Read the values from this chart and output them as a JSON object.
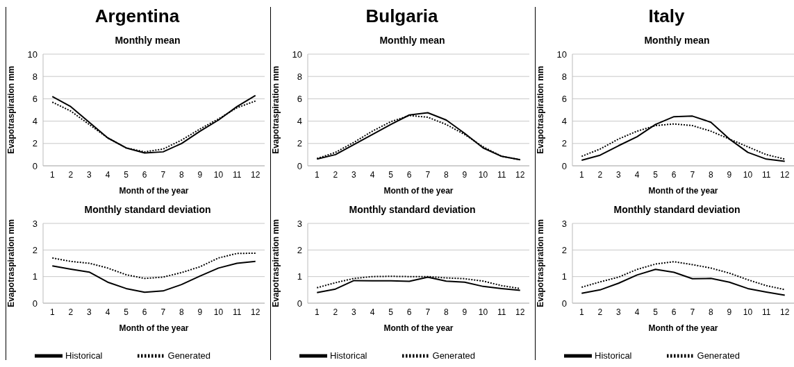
{
  "chart_data": [
    {
      "type": "line",
      "title": "Argentina",
      "subtitle": "Monthly mean",
      "xlabel": "Month of the year",
      "ylabel": "Evapotraspiration mm",
      "x": [
        1,
        2,
        3,
        4,
        5,
        6,
        7,
        8,
        9,
        10,
        11,
        12
      ],
      "xlim": [
        0.5,
        12.5
      ],
      "xticks": [
        1,
        2,
        3,
        4,
        5,
        6,
        7,
        8,
        9,
        10,
        11,
        12
      ],
      "ylim": [
        0,
        10
      ],
      "yticks": [
        0,
        2,
        4,
        6,
        8,
        10
      ],
      "grid": "y",
      "legend": false,
      "series": [
        {
          "color": "#000000",
          "line_style": "solid",
          "values": [
            6.2,
            5.3,
            3.9,
            2.5,
            1.6,
            1.15,
            1.25,
            2.0,
            3.1,
            4.1,
            5.3,
            6.3
          ]
        },
        {
          "color": "#000000",
          "line_style": "dotted",
          "values": [
            5.7,
            4.9,
            3.7,
            2.5,
            1.6,
            1.25,
            1.5,
            2.3,
            3.3,
            4.2,
            5.2,
            5.8
          ]
        }
      ]
    },
    {
      "type": "line",
      "title": "Monthly standard deviation",
      "xlabel": "Month of the year",
      "ylabel": "Evapotraspiration mm",
      "x": [
        1,
        2,
        3,
        4,
        5,
        6,
        7,
        8,
        9,
        10,
        11,
        12
      ],
      "xlim": [
        0.5,
        12.5
      ],
      "xticks": [
        1,
        2,
        3,
        4,
        5,
        6,
        7,
        8,
        9,
        10,
        11,
        12
      ],
      "ylim": [
        0,
        3
      ],
      "yticks": [
        0,
        1,
        2,
        3
      ],
      "grid": "y",
      "legend": "bottom",
      "series": [
        {
          "name": "Historical",
          "color": "#000000",
          "line_style": "solid",
          "values": [
            1.4,
            1.28,
            1.17,
            0.79,
            0.55,
            0.41,
            0.46,
            0.7,
            1.02,
            1.32,
            1.5,
            1.57
          ]
        },
        {
          "name": "Generated",
          "color": "#000000",
          "line_style": "dotted",
          "values": [
            1.7,
            1.57,
            1.5,
            1.32,
            1.07,
            0.93,
            0.98,
            1.15,
            1.37,
            1.7,
            1.87,
            1.88
          ]
        }
      ]
    },
    {
      "type": "line",
      "title": "Bulgaria",
      "subtitle": "Monthly mean",
      "xlabel": "Month of the year",
      "ylabel": "Evapotraspiration mm",
      "x": [
        1,
        2,
        3,
        4,
        5,
        6,
        7,
        8,
        9,
        10,
        11,
        12
      ],
      "xlim": [
        0.5,
        12.5
      ],
      "xticks": [
        1,
        2,
        3,
        4,
        5,
        6,
        7,
        8,
        9,
        10,
        11,
        12
      ],
      "ylim": [
        0,
        10
      ],
      "yticks": [
        0,
        2,
        4,
        6,
        8,
        10
      ],
      "grid": "y",
      "legend": false,
      "series": [
        {
          "color": "#000000",
          "line_style": "solid",
          "values": [
            0.6,
            1.0,
            1.9,
            2.8,
            3.7,
            4.55,
            4.75,
            4.1,
            2.9,
            1.6,
            0.85,
            0.55
          ]
        },
        {
          "color": "#000000",
          "line_style": "dotted",
          "values": [
            0.65,
            1.2,
            2.1,
            3.1,
            3.95,
            4.5,
            4.35,
            3.7,
            2.8,
            1.7,
            0.85,
            0.55
          ]
        }
      ]
    },
    {
      "type": "line",
      "title": "Monthly standard deviation",
      "xlabel": "Month of the year",
      "ylabel": "Evapotraspiration mm",
      "x": [
        1,
        2,
        3,
        4,
        5,
        6,
        7,
        8,
        9,
        10,
        11,
        12
      ],
      "xlim": [
        0.5,
        12.5
      ],
      "xticks": [
        1,
        2,
        3,
        4,
        5,
        6,
        7,
        8,
        9,
        10,
        11,
        12
      ],
      "ylim": [
        0,
        3
      ],
      "yticks": [
        0,
        1,
        2,
        3
      ],
      "grid": "y",
      "legend": "bottom",
      "series": [
        {
          "name": "Historical",
          "color": "#000000",
          "line_style": "solid",
          "values": [
            0.4,
            0.53,
            0.85,
            0.84,
            0.84,
            0.82,
            0.98,
            0.83,
            0.79,
            0.63,
            0.55,
            0.48
          ]
        },
        {
          "name": "Generated",
          "color": "#000000",
          "line_style": "dotted",
          "values": [
            0.58,
            0.77,
            0.93,
            1.0,
            1.01,
            1.0,
            1.0,
            0.95,
            0.92,
            0.83,
            0.66,
            0.55
          ]
        }
      ]
    },
    {
      "type": "line",
      "title": "Italy",
      "subtitle": "Monthly mean",
      "xlabel": "Month of the year",
      "ylabel": "Evapotraspiration mm",
      "x": [
        1,
        2,
        3,
        4,
        5,
        6,
        7,
        8,
        9,
        10,
        11,
        12
      ],
      "xlim": [
        0.5,
        12.5
      ],
      "xticks": [
        1,
        2,
        3,
        4,
        5,
        6,
        7,
        8,
        9,
        10,
        11,
        12
      ],
      "ylim": [
        0,
        10
      ],
      "yticks": [
        0,
        2,
        4,
        6,
        8,
        10
      ],
      "grid": "y",
      "legend": false,
      "series": [
        {
          "color": "#000000",
          "line_style": "solid",
          "values": [
            0.5,
            0.95,
            1.8,
            2.6,
            3.7,
            4.4,
            4.45,
            3.9,
            2.4,
            1.2,
            0.6,
            0.4
          ]
        },
        {
          "color": "#000000",
          "line_style": "dotted",
          "values": [
            0.85,
            1.5,
            2.4,
            3.1,
            3.6,
            3.75,
            3.6,
            3.1,
            2.4,
            1.7,
            1.0,
            0.6
          ]
        }
      ]
    },
    {
      "type": "line",
      "title": "Monthly standard deviation",
      "xlabel": "Month of the year",
      "ylabel": "Evapotraspiration mm",
      "x": [
        1,
        2,
        3,
        4,
        5,
        6,
        7,
        8,
        9,
        10,
        11,
        12
      ],
      "xlim": [
        0.5,
        12.5
      ],
      "xticks": [
        1,
        2,
        3,
        4,
        5,
        6,
        7,
        8,
        9,
        10,
        11,
        12
      ],
      "ylim": [
        0,
        3
      ],
      "yticks": [
        0,
        1,
        2,
        3
      ],
      "grid": "y",
      "legend": "bottom",
      "series": [
        {
          "name": "Historical",
          "color": "#000000",
          "line_style": "solid",
          "values": [
            0.37,
            0.5,
            0.75,
            1.06,
            1.27,
            1.16,
            0.92,
            0.93,
            0.79,
            0.55,
            0.42,
            0.3
          ]
        },
        {
          "name": "Generated",
          "color": "#000000",
          "line_style": "dotted",
          "values": [
            0.6,
            0.8,
            0.98,
            1.27,
            1.47,
            1.56,
            1.45,
            1.32,
            1.13,
            0.88,
            0.66,
            0.51
          ]
        }
      ]
    }
  ]
}
